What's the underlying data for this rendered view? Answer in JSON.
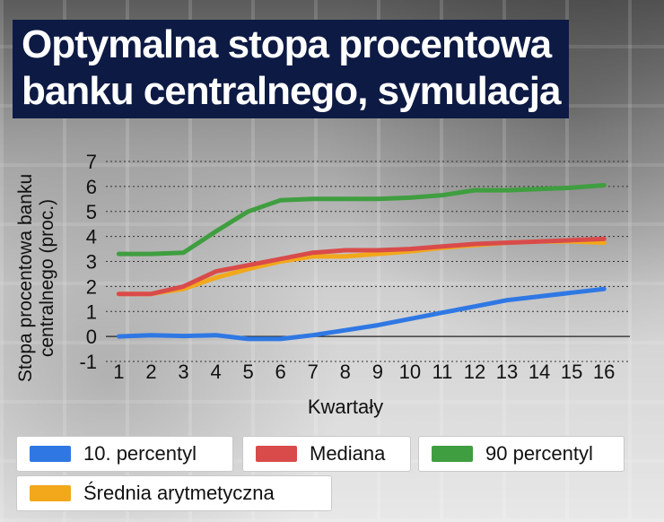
{
  "title": {
    "line1": "Optymalna stopa procentowa",
    "line2": "banku centralnego, symulacja"
  },
  "colors": {
    "title_bg": "#0d1a44",
    "p10": "#2f78e4",
    "median": "#d94b4b",
    "p90": "#3f9e3f",
    "mean": "#f2a81a"
  },
  "chart_data": {
    "type": "line",
    "title": "Optymalna stopa procentowa banku centralnego, symulacja",
    "xlabel": "Kwartały",
    "ylabel_line1": "Stopa procentowa banku",
    "ylabel_line2": "centralnego (proc.)",
    "x": [
      1,
      2,
      3,
      4,
      5,
      6,
      7,
      8,
      9,
      10,
      11,
      12,
      13,
      14,
      15,
      16
    ],
    "ylim": [
      -1,
      7
    ],
    "yticks": [
      -1,
      0,
      1,
      2,
      3,
      4,
      5,
      6,
      7
    ],
    "grid": "horizontal dotted",
    "legend_position": "bottom",
    "series": [
      {
        "name": "10. percentyl",
        "color": "#2f78e4",
        "values": [
          0.0,
          0.05,
          0.02,
          0.05,
          -0.1,
          -0.1,
          0.05,
          0.25,
          0.45,
          0.7,
          0.95,
          1.2,
          1.45,
          1.6,
          1.75,
          1.9
        ]
      },
      {
        "name": "Mediana",
        "color": "#d94b4b",
        "values": [
          1.7,
          1.7,
          2.0,
          2.6,
          2.85,
          3.1,
          3.35,
          3.45,
          3.45,
          3.5,
          3.6,
          3.7,
          3.75,
          3.8,
          3.85,
          3.9
        ]
      },
      {
        "name": "90 percentyl",
        "color": "#3f9e3f",
        "values": [
          3.3,
          3.3,
          3.35,
          4.2,
          5.0,
          5.45,
          5.5,
          5.5,
          5.5,
          5.55,
          5.65,
          5.85,
          5.85,
          5.9,
          5.95,
          6.05
        ]
      },
      {
        "name": "Średnia arytmetyczna",
        "color": "#f2a81a",
        "values": [
          1.7,
          1.7,
          1.9,
          2.35,
          2.7,
          3.0,
          3.2,
          3.2,
          3.3,
          3.4,
          3.55,
          3.65,
          3.75,
          3.8,
          3.8,
          3.75
        ]
      }
    ]
  }
}
